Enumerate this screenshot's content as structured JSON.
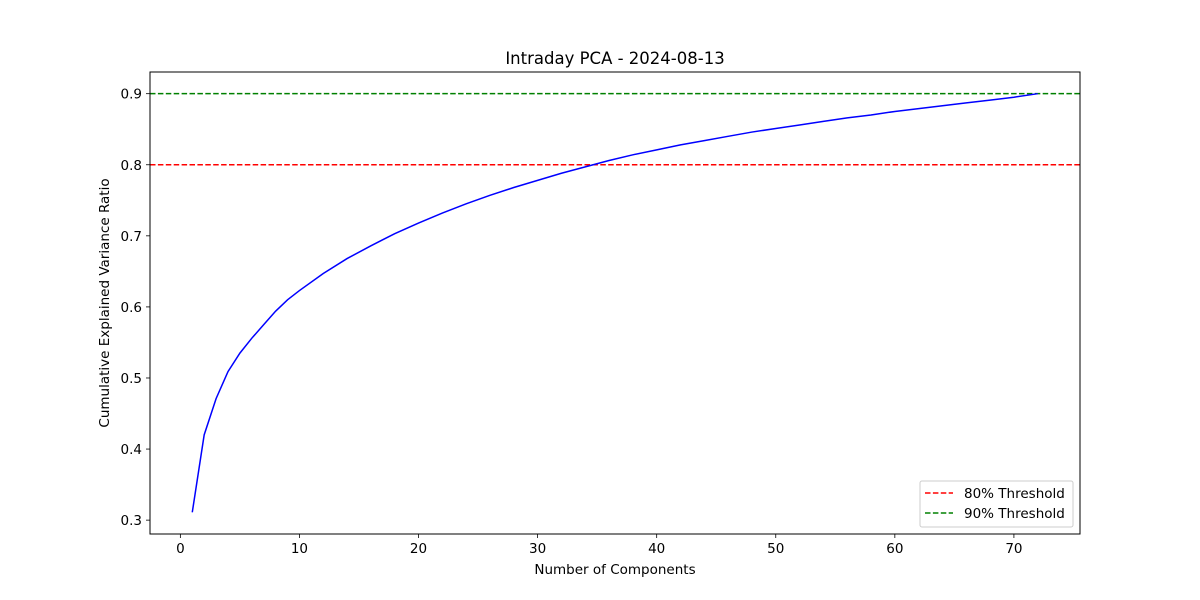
{
  "chart_data": {
    "type": "line",
    "title": "Intraday PCA - 2024-08-13",
    "xlabel": "Number of Components",
    "ylabel": "Cumulative Explained Variance Ratio",
    "xlim": [
      -2.55,
      75.55
    ],
    "ylim": [
      0.2805,
      0.9305
    ],
    "xticks": [
      0,
      10,
      20,
      30,
      40,
      50,
      60,
      70
    ],
    "yticks": [
      0.3,
      0.4,
      0.5,
      0.6,
      0.7,
      0.8,
      0.9
    ],
    "grid": false,
    "legend_position": "lower-right",
    "series": [
      {
        "name": "",
        "color": "#0000ff",
        "x": [
          1,
          2,
          3,
          4,
          5,
          6,
          7,
          8,
          9,
          10,
          12,
          14,
          16,
          18,
          20,
          22,
          24,
          26,
          28,
          30,
          32,
          34,
          36,
          38,
          40,
          42,
          44,
          46,
          48,
          50,
          52,
          54,
          56,
          58,
          60,
          62,
          64,
          66,
          68,
          70,
          72
        ],
        "y": [
          0.311,
          0.42,
          0.471,
          0.509,
          0.535,
          0.556,
          0.575,
          0.594,
          0.61,
          0.623,
          0.647,
          0.668,
          0.686,
          0.703,
          0.718,
          0.732,
          0.745,
          0.757,
          0.768,
          0.778,
          0.788,
          0.797,
          0.806,
          0.814,
          0.821,
          0.828,
          0.834,
          0.84,
          0.846,
          0.851,
          0.856,
          0.861,
          0.866,
          0.87,
          0.875,
          0.879,
          0.883,
          0.887,
          0.891,
          0.895,
          0.9
        ]
      }
    ],
    "reference_lines": [
      {
        "name": "80% Threshold",
        "y": 0.8,
        "color": "#ff0000",
        "style": "dashed"
      },
      {
        "name": "90% Threshold",
        "y": 0.9,
        "color": "#008000",
        "style": "dashed"
      }
    ]
  }
}
